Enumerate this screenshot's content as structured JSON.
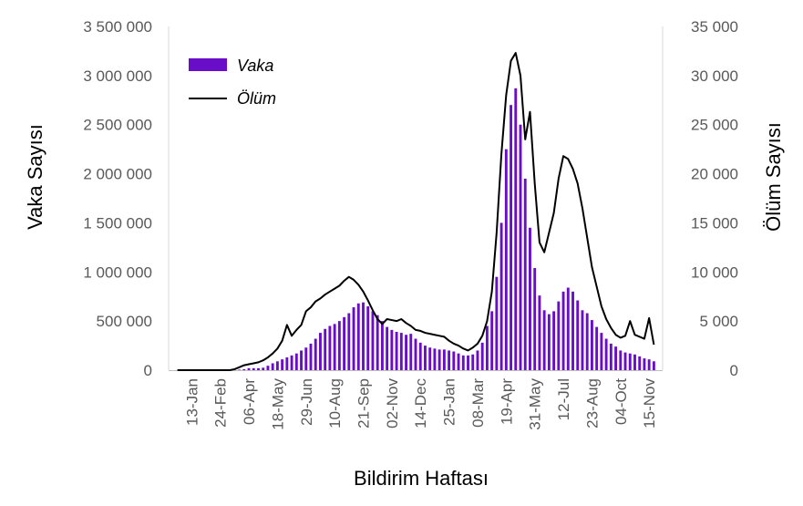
{
  "chart_data": {
    "type": "bar+line",
    "title": "",
    "xlabel": "Bildirim Haftası",
    "ylabel_left": "Vaka Sayısı",
    "ylabel_right": "Ölüm Sayısı",
    "ylim_left": [
      0,
      3500000
    ],
    "ylim_right": [
      0,
      35000
    ],
    "yticks_left": [
      "0",
      "500 000",
      "1 000 000",
      "1 500 000",
      "2 000 000",
      "2 500 000",
      "3 000 000",
      "3 500 000"
    ],
    "yticks_right": [
      "0",
      "5 000",
      "10 000",
      "15 000",
      "20 000",
      "25 000",
      "30 000",
      "35 000"
    ],
    "xtick_labels": [
      "13-Jan",
      "24-Feb",
      "06-Apr",
      "18-May",
      "29-Jun",
      "10-Aug",
      "21-Sep",
      "02-Nov",
      "14-Dec",
      "25-Jan",
      "08-Mar",
      "19-Apr",
      "31-May",
      "12-Jul",
      "23-Aug",
      "04-Oct",
      "15-Nov"
    ],
    "xtick_positions": [
      3,
      9,
      15,
      21,
      27,
      33,
      39,
      45,
      51,
      57,
      63,
      69,
      75,
      81,
      87,
      93,
      99
    ],
    "legend_position": "top-left",
    "series": [
      {
        "name": "Vaka",
        "kind": "bar",
        "axis": "left",
        "color": "#6a0dc8",
        "values": [
          0,
          0,
          0,
          0,
          0,
          0,
          0,
          0,
          0,
          0,
          0,
          0,
          2000,
          5000,
          10000,
          20000,
          20000,
          20000,
          25000,
          45000,
          70000,
          90000,
          110000,
          130000,
          150000,
          170000,
          200000,
          230000,
          270000,
          320000,
          380000,
          420000,
          450000,
          470000,
          500000,
          540000,
          580000,
          640000,
          680000,
          690000,
          650000,
          600000,
          560000,
          500000,
          440000,
          410000,
          390000,
          380000,
          360000,
          370000,
          320000,
          280000,
          250000,
          230000,
          220000,
          210000,
          210000,
          200000,
          190000,
          170000,
          150000,
          150000,
          160000,
          200000,
          280000,
          450000,
          600000,
          950000,
          1500000,
          2250000,
          2700000,
          2870000,
          2500000,
          1950000,
          1450000,
          1040000,
          760000,
          610000,
          570000,
          600000,
          700000,
          800000,
          840000,
          800000,
          710000,
          610000,
          580000,
          510000,
          440000,
          380000,
          320000,
          270000,
          240000,
          200000,
          180000,
          170000,
          160000,
          140000,
          120000,
          110000,
          90000
        ]
      },
      {
        "name": "Ölüm",
        "kind": "line",
        "axis": "right",
        "color": "#000000",
        "values": [
          0,
          0,
          0,
          0,
          0,
          0,
          0,
          0,
          0,
          0,
          0,
          0,
          100,
          300,
          500,
          600,
          700,
          800,
          1000,
          1300,
          1700,
          2200,
          3000,
          4600,
          3500,
          4100,
          4600,
          6000,
          6400,
          7000,
          7300,
          7700,
          8000,
          8300,
          8600,
          9100,
          9500,
          9200,
          8700,
          8000,
          7100,
          6100,
          5200,
          4700,
          5200,
          5100,
          5000,
          5200,
          4800,
          4500,
          4100,
          4000,
          3800,
          3700,
          3600,
          3500,
          3400,
          3000,
          2700,
          2500,
          2200,
          2000,
          2300,
          2700,
          3500,
          5000,
          8000,
          14000,
          22000,
          28000,
          31500,
          32300,
          30000,
          23500,
          26300,
          19000,
          13000,
          12000,
          14000,
          16000,
          19500,
          21800,
          21500,
          20500,
          19000,
          16500,
          13500,
          10500,
          8500,
          6500,
          5200,
          4300,
          3600,
          3300,
          3500,
          5000,
          3600,
          3400,
          3200,
          5300,
          2600
        ]
      }
    ]
  }
}
